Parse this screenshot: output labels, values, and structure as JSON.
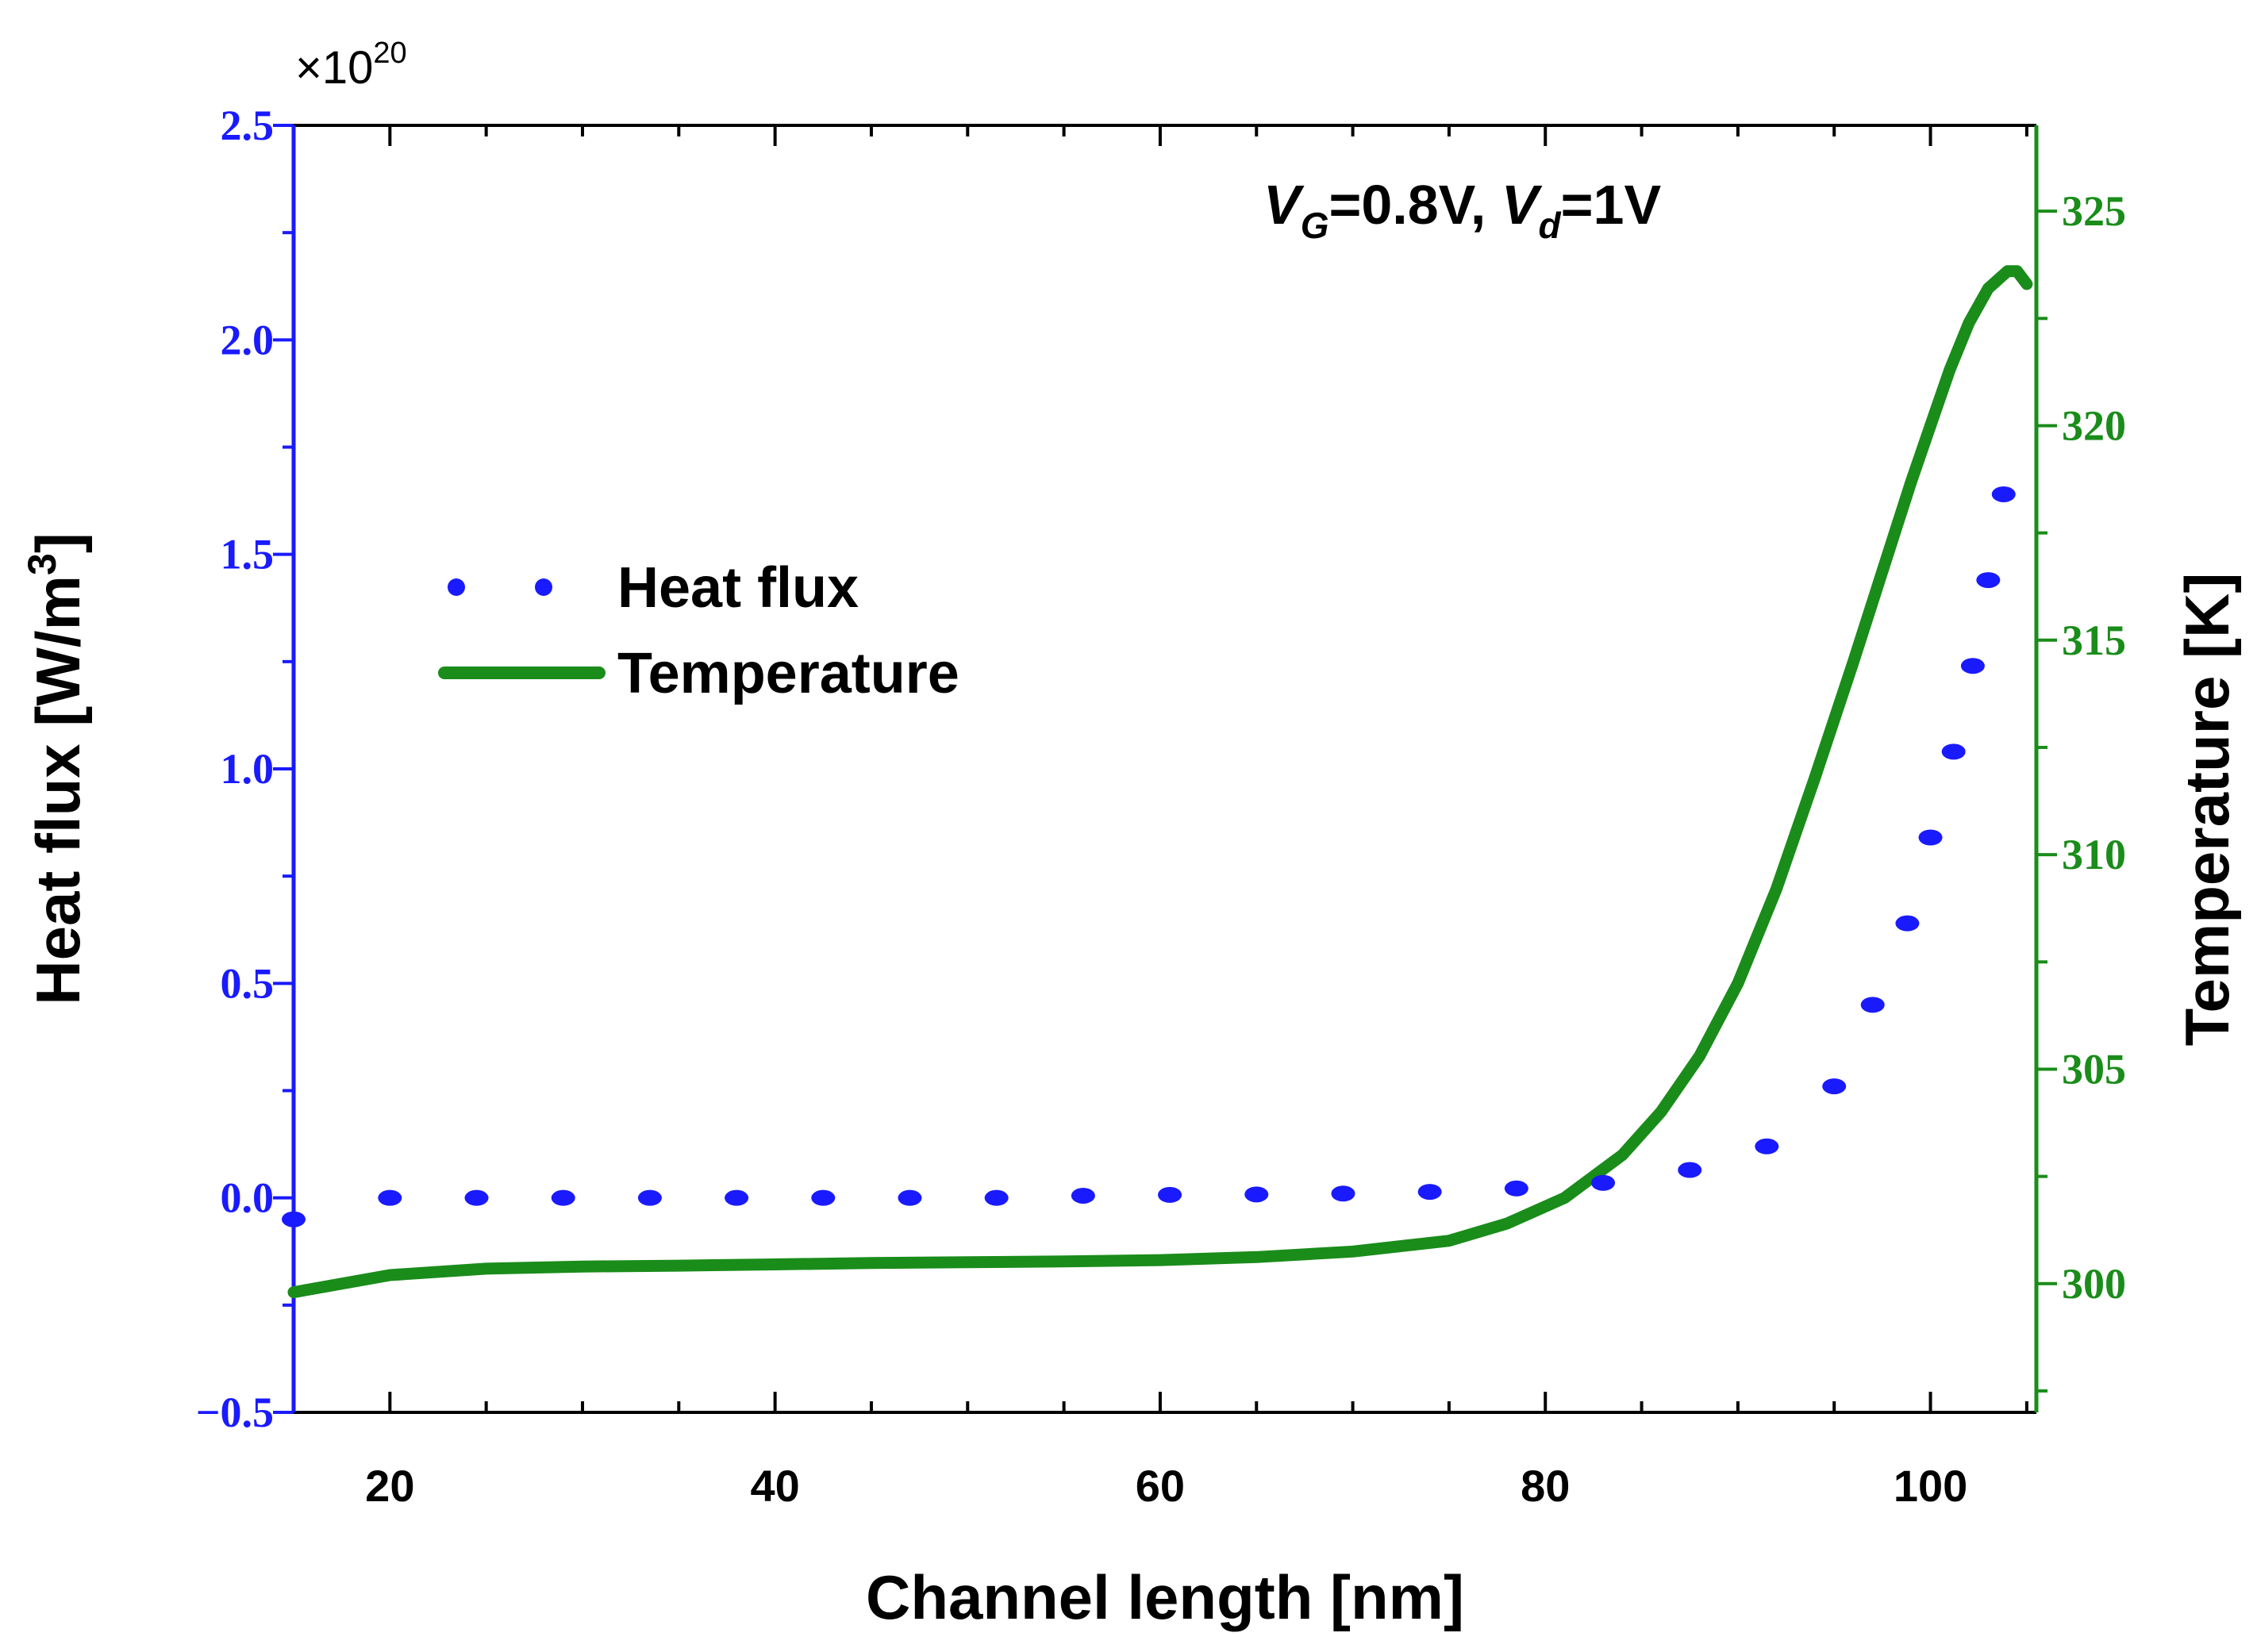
{
  "chart_data": {
    "type": "line",
    "title": "",
    "annotation": {
      "vg_symbol": "V",
      "vg_sub": "G",
      "vg_value": "=0.8V, ",
      "vd_symbol": "V",
      "vd_sub": "d",
      "vd_value": "=1V"
    },
    "xlabel": "Channel length [nm]",
    "xlim": [
      15,
      105.5
    ],
    "xticks": [
      20,
      40,
      60,
      80,
      100
    ],
    "xtick_labels": [
      "20",
      "40",
      "60",
      "80",
      "100"
    ],
    "ylabel_left": "Heat flux [W/m",
    "ylabel_left_sup": "3",
    "ylabel_left_close": "]",
    "ylim_left": [
      -0.5,
      2.5
    ],
    "yticks_left": [
      -0.5,
      0.0,
      0.5,
      1.0,
      1.5,
      2.0,
      2.5
    ],
    "ytick_labels_left": [
      "−0.5",
      "0.0",
      "0.5",
      "1.0",
      "1.5",
      "2.0",
      "2.5"
    ],
    "left_multiplier_prefix": "×10",
    "left_multiplier_exp": "20",
    "ylabel_right": "Temperature [K]",
    "ylim_right": [
      297,
      327
    ],
    "yticks_right": [
      300,
      305,
      310,
      315,
      320,
      325
    ],
    "ytick_labels_right": [
      "300",
      "305",
      "310",
      "315",
      "320",
      "325"
    ],
    "legend_position": "upper-left",
    "colors": {
      "heat_flux": "#1a1aff",
      "temperature": "#1a8c1a",
      "left_axis": "#1a1aff",
      "right_axis": "#1a8c1a",
      "text": "#000000"
    },
    "series": [
      {
        "name": "Heat flux",
        "axis": "left",
        "style": "dotted",
        "x": [
          15,
          20,
          24.5,
          29,
          33.5,
          38,
          42.5,
          47,
          51.5,
          56,
          60.5,
          65,
          69.5,
          74,
          78.5,
          83,
          87.5,
          91.5,
          95,
          97,
          98.8,
          100,
          101.2,
          102.2,
          103,
          103.8
        ],
        "y": [
          -0.05,
          0.0,
          0.0,
          0.0,
          0.0,
          0.0,
          0.0,
          0.0,
          0.0,
          0.005,
          0.007,
          0.008,
          0.01,
          0.014,
          0.022,
          0.035,
          0.065,
          0.12,
          0.26,
          0.45,
          0.64,
          0.84,
          1.04,
          1.24,
          1.44,
          1.64
        ]
      },
      {
        "name": "Temperature",
        "axis": "right",
        "style": "solid",
        "x": [
          15,
          20,
          25,
          30,
          35,
          40,
          45,
          50,
          55,
          60,
          65,
          70,
          75,
          78,
          81,
          84,
          86,
          88,
          90,
          92,
          94,
          96,
          98,
          99,
          100,
          101,
          102,
          103,
          104,
          104.5,
          105
        ],
        "y": [
          299.8,
          300.2,
          300.35,
          300.4,
          300.42,
          300.45,
          300.48,
          300.5,
          300.52,
          300.55,
          300.62,
          300.75,
          301.0,
          301.4,
          302.0,
          303.0,
          304.0,
          305.3,
          307.0,
          309.2,
          311.8,
          314.5,
          317.3,
          318.7,
          320.0,
          321.3,
          322.4,
          323.2,
          323.6,
          323.6,
          323.3
        ]
      }
    ]
  }
}
